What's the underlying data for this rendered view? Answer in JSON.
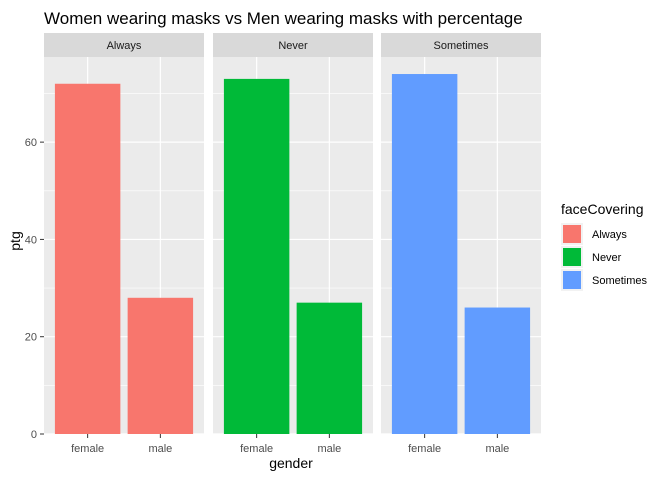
{
  "chart_data": {
    "type": "bar",
    "title": "Women wearing masks vs Men wearing masks with percentage",
    "xlabel": "gender",
    "ylabel": "ptg",
    "facet_labels": [
      "Always",
      "Never",
      "Sometimes"
    ],
    "categories": [
      "female",
      "male"
    ],
    "series": [
      {
        "name": "Always",
        "values": [
          72,
          28
        ]
      },
      {
        "name": "Never",
        "values": [
          73,
          27
        ]
      },
      {
        "name": "Sometimes",
        "values": [
          74,
          26
        ]
      }
    ],
    "yticks": [
      0,
      20,
      40,
      60
    ],
    "ylim": [
      0,
      77.5
    ],
    "grid": true,
    "legend": {
      "title": "faceCovering",
      "position": "right",
      "entries": [
        "Always",
        "Never",
        "Sometimes"
      ]
    },
    "colors": [
      "#F8766D",
      "#00BA38",
      "#619CFF"
    ]
  }
}
